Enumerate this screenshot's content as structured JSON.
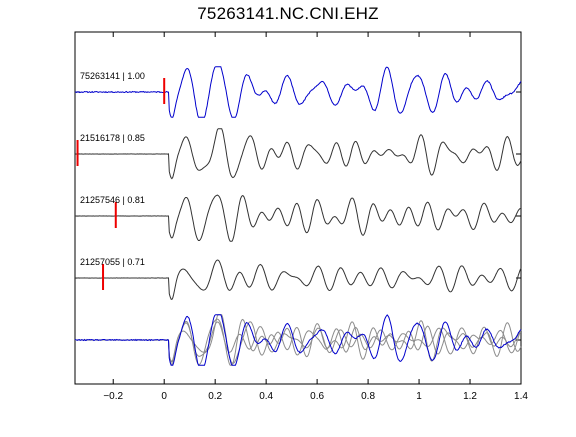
{
  "chart_data": {
    "type": "line",
    "title": "75263141.NC.CNI.EHZ",
    "xlabel": "",
    "ylabel": "",
    "xlim": [
      -0.35,
      1.4
    ],
    "x_ticks": [
      -0.2,
      0,
      0.2,
      0.4,
      0.6,
      0.8,
      1,
      1.2,
      1.4
    ],
    "x_tick_labels": [
      "−0.2",
      "0",
      "0.2",
      "0.4",
      "0.6",
      "0.8",
      "1",
      "1.2",
      "1.4"
    ],
    "grid": false,
    "legend": "none",
    "colors": {
      "reference": "#0000cc",
      "match": "#333333",
      "overlay": "#8c8c8c",
      "pick": "#ee0000"
    },
    "traces": [
      {
        "label": "75263141 | 1.00",
        "color": "#0000cc",
        "pick_time": 0.0,
        "amp": 1.0,
        "noise": 0.05,
        "seed": 11
      },
      {
        "label": "21516178 | 0.85",
        "color": "#333333",
        "pick_time": -0.34,
        "amp": 0.95,
        "noise": 0.01,
        "seed": 23
      },
      {
        "label": "21257546 | 0.81",
        "color": "#333333",
        "pick_time": -0.19,
        "amp": 0.85,
        "noise": 0.01,
        "seed": 37
      },
      {
        "label": "21257055 | 0.71",
        "color": "#333333",
        "pick_time": -0.24,
        "amp": 0.85,
        "noise": 0.01,
        "seed": 53
      }
    ],
    "stack": {
      "label": "",
      "includes": [
        "21516178",
        "21257546",
        "21257055",
        "75263141"
      ]
    }
  }
}
